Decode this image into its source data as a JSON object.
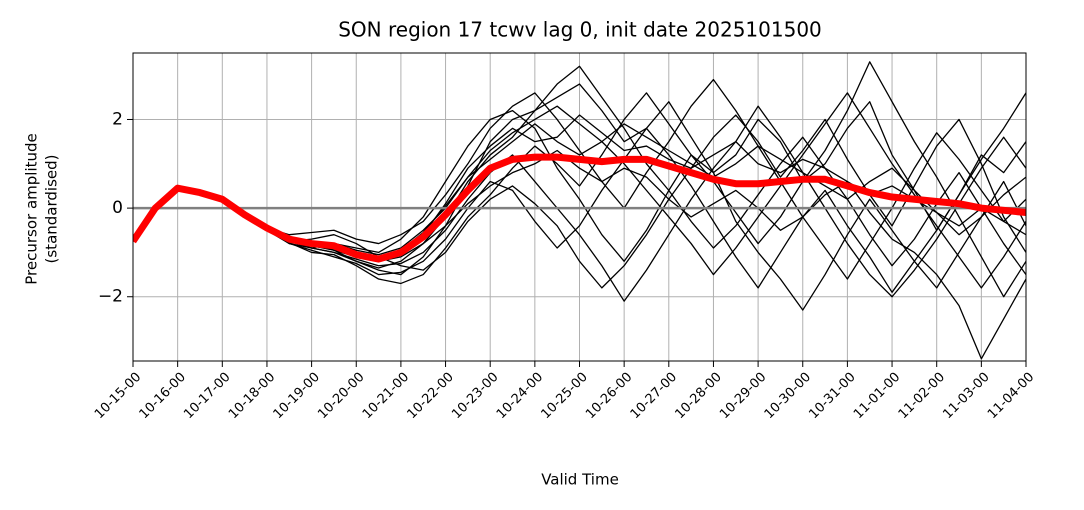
{
  "chart_data": {
    "type": "line",
    "title": "SON region 17 tcwv lag 0, init date 2025101500",
    "xlabel": "Valid Time",
    "ylabel": [
      "Precursor amplitude",
      "(standardised)"
    ],
    "categories": [
      "10-15-00",
      null,
      "10-16-00",
      null,
      "10-17-00",
      null,
      "10-18-00",
      null,
      "10-19-00",
      null,
      "10-20-00",
      null,
      "10-21-00",
      null,
      "10-22-00",
      null,
      "10-23-00",
      null,
      "10-24-00",
      null,
      "10-25-00",
      null,
      "10-26-00",
      null,
      "10-27-00",
      null,
      "10-28-00",
      null,
      "10-29-00",
      null,
      "10-30-00",
      null,
      "10-31-00",
      null,
      "11-01-00",
      null,
      "11-02-00",
      null,
      "11-03-00",
      null,
      "11-04-00"
    ],
    "ylim": [
      -3.45,
      3.5
    ],
    "yticks": [
      {
        "value": -2,
        "label": "−2"
      },
      0,
      2
    ],
    "grid": true,
    "hline": {
      "value": 0,
      "color": "#808080"
    },
    "series": [
      {
        "color": "#000000",
        "width": 1.3,
        "values": [
          null,
          null,
          0.45,
          0.4,
          0.25,
          -0.1,
          -0.4,
          -0.7,
          -0.9,
          -1.0,
          -1.2,
          -1.4,
          -1.5,
          -1.1,
          -0.4,
          0.5,
          1.5,
          2.0,
          2.2,
          2.5,
          2.8,
          2.2,
          1.5,
          1.8,
          2.4,
          1.6,
          0.8,
          1.2,
          2.0,
          1.5,
          0.6,
          1.0,
          1.8,
          2.4,
          1.2,
          0.4,
          -0.5,
          0.3,
          1.2,
          0.8,
          1.5
        ]
      },
      {
        "color": "#000000",
        "width": 1.3,
        "values": [
          null,
          null,
          0.45,
          0.35,
          0.2,
          -0.2,
          -0.5,
          -0.8,
          -0.9,
          -0.8,
          -0.9,
          -1.0,
          -0.7,
          -0.2,
          0.6,
          1.4,
          2.0,
          2.2,
          1.8,
          0.9,
          0.2,
          -0.6,
          -1.2,
          -0.5,
          0.4,
          1.2,
          0.8,
          -0.3,
          -1.0,
          -1.6,
          -2.3,
          -1.5,
          -0.6,
          0.2,
          -0.5,
          -1.2,
          -1.8,
          -1.0,
          -0.2,
          0.6,
          -0.4
        ]
      },
      {
        "color": "#000000",
        "width": 1.3,
        "values": [
          null,
          null,
          0.45,
          0.3,
          0.15,
          -0.2,
          -0.5,
          -0.75,
          -0.7,
          -0.6,
          -0.8,
          -1.1,
          -1.3,
          -1.4,
          -1.0,
          -0.3,
          0.2,
          0.5,
          0.1,
          -0.4,
          -1.2,
          -1.8,
          -1.3,
          -0.6,
          0.2,
          0.9,
          1.6,
          2.1,
          1.5,
          0.7,
          1.3,
          2.0,
          1.1,
          0.3,
          -0.4,
          0.5,
          1.4,
          2.0,
          1.0,
          -0.2,
          -1.0
        ]
      },
      {
        "color": "#000000",
        "width": 1.3,
        "values": [
          null,
          null,
          0.45,
          0.38,
          0.22,
          -0.12,
          -0.42,
          -0.65,
          -0.75,
          -0.95,
          -1.2,
          -1.35,
          -1.2,
          -0.8,
          -0.2,
          0.6,
          1.2,
          1.6,
          2.2,
          2.8,
          3.2,
          2.5,
          1.8,
          1.0,
          0.4,
          -0.3,
          -0.9,
          -0.4,
          0.3,
          1.0,
          1.6,
          0.9,
          0.2,
          -0.6,
          -1.3,
          -0.7,
          0.1,
          0.8,
          0.0,
          -0.8,
          -1.5
        ]
      },
      {
        "color": "#000000",
        "width": 1.3,
        "values": [
          null,
          null,
          0.45,
          0.36,
          0.18,
          -0.18,
          -0.48,
          -0.78,
          -1.0,
          -1.05,
          -1.3,
          -1.6,
          -1.7,
          -1.5,
          -0.9,
          -0.2,
          0.3,
          0.9,
          1.4,
          1.0,
          0.5,
          1.2,
          2.0,
          2.6,
          1.9,
          1.2,
          0.6,
          -0.1,
          -0.8,
          -0.2,
          0.6,
          1.3,
          2.2,
          3.3,
          2.4,
          1.5,
          0.7,
          -0.2,
          -1.1,
          -2.0,
          -1.2
        ]
      },
      {
        "color": "#000000",
        "width": 1.3,
        "values": [
          null,
          null,
          0.45,
          0.34,
          0.2,
          -0.15,
          -0.45,
          -0.6,
          -0.55,
          -0.5,
          -0.7,
          -0.8,
          -0.6,
          -0.3,
          0.3,
          1.0,
          1.8,
          2.3,
          2.6,
          2.0,
          1.3,
          0.6,
          0.0,
          0.8,
          1.5,
          2.3,
          2.9,
          2.2,
          1.4,
          0.6,
          -0.2,
          -0.9,
          -1.6,
          -0.8,
          0.0,
          0.9,
          1.7,
          1.1,
          0.4,
          -0.3,
          0.2
        ]
      },
      {
        "color": "#000000",
        "width": 1.3,
        "values": [
          null,
          null,
          0.45,
          0.37,
          0.24,
          -0.1,
          -0.45,
          -0.8,
          -0.95,
          -1.1,
          -1.25,
          -1.5,
          -1.45,
          -1.2,
          -0.7,
          0.0,
          0.6,
          0.4,
          -0.3,
          -0.9,
          -0.4,
          0.4,
          1.1,
          1.8,
          1.2,
          0.5,
          -0.3,
          -1.1,
          -1.8,
          -1.0,
          -0.2,
          0.4,
          -0.4,
          -1.1,
          -1.9,
          -1.2,
          -0.5,
          0.3,
          1.1,
          1.8,
          2.6
        ]
      },
      {
        "color": "#000000",
        "width": 1.3,
        "values": [
          null,
          null,
          0.45,
          0.33,
          0.19,
          -0.16,
          -0.44,
          -0.72,
          -0.85,
          -0.9,
          -1.0,
          -1.2,
          -1.05,
          -0.6,
          0.1,
          0.9,
          1.4,
          1.8,
          1.5,
          1.6,
          2.1,
          1.7,
          1.3,
          1.4,
          1.1,
          0.9,
          1.2,
          1.5,
          1.0,
          0.8,
          1.1,
          0.9,
          0.6,
          0.3,
          0.5,
          0.2,
          -0.1,
          -0.4,
          0.0,
          -0.3,
          -0.6
        ]
      },
      {
        "color": "#000000",
        "width": 1.3,
        "values": [
          null,
          null,
          0.45,
          0.39,
          0.21,
          -0.14,
          -0.46,
          -0.7,
          -0.85,
          -0.95,
          -1.1,
          -1.2,
          -1.1,
          -0.8,
          -0.4,
          0.1,
          0.5,
          0.8,
          1.0,
          1.3,
          0.9,
          0.6,
          0.9,
          0.7,
          0.2,
          -0.2,
          0.1,
          0.4,
          0.0,
          -0.5,
          -0.2,
          0.3,
          0.6,
          -0.1,
          -0.7,
          -1.0,
          -1.5,
          -2.2,
          -3.4,
          -2.5,
          -1.6
        ]
      },
      {
        "color": "#000000",
        "width": 1.3,
        "values": [
          null,
          null,
          0.45,
          0.36,
          0.2,
          -0.13,
          -0.43,
          -0.68,
          -0.8,
          -0.8,
          -0.95,
          -1.05,
          -0.9,
          -0.5,
          0.0,
          0.7,
          1.3,
          1.7,
          2.0,
          2.3,
          1.9,
          1.5,
          1.0,
          0.4,
          -0.2,
          -0.8,
          -1.5,
          -0.9,
          -0.2,
          0.5,
          1.2,
          1.9,
          2.6,
          1.8,
          1.0,
          0.3,
          -0.4,
          -1.1,
          -1.8,
          -1.1,
          -0.3
        ]
      },
      {
        "color": "#000000",
        "width": 1.3,
        "values": [
          null,
          null,
          0.45,
          0.35,
          0.2,
          -0.15,
          -0.5,
          -0.75,
          -0.9,
          -1.0,
          -1.15,
          -1.3,
          -1.25,
          -1.0,
          -0.5,
          0.2,
          0.8,
          1.2,
          0.6,
          0.0,
          -0.6,
          -1.3,
          -2.1,
          -1.4,
          -0.6,
          0.2,
          0.9,
          1.5,
          2.3,
          1.6,
          0.8,
          0.0,
          -0.8,
          -1.5,
          -2.0,
          -1.4,
          -0.7,
          0.1,
          0.9,
          1.6,
          0.9
        ]
      },
      {
        "color": "#000000",
        "width": 1.3,
        "values": [
          null,
          null,
          0.45,
          0.37,
          0.23,
          -0.11,
          -0.42,
          -0.66,
          -0.78,
          -0.86,
          -1.0,
          -1.1,
          -0.95,
          -0.55,
          0.05,
          0.7,
          1.1,
          1.5,
          1.9,
          1.5,
          1.2,
          1.5,
          1.9,
          1.6,
          1.3,
          1.0,
          0.7,
          1.0,
          1.4,
          1.1,
          0.8,
          0.5,
          0.2,
          0.6,
          0.9,
          0.4,
          -0.1,
          -0.6,
          -0.2,
          0.3,
          0.7
        ]
      },
      {
        "color": "#ff0000",
        "width": 7,
        "values": [
          -0.75,
          0,
          0.45,
          0.35,
          0.2,
          -0.15,
          -0.45,
          -0.7,
          -0.8,
          -0.85,
          -1.05,
          -1.15,
          -1.0,
          -0.65,
          -0.15,
          0.4,
          0.9,
          1.1,
          1.15,
          1.15,
          1.1,
          1.05,
          1.1,
          1.1,
          0.95,
          0.8,
          0.65,
          0.55,
          0.55,
          0.6,
          0.65,
          0.65,
          0.5,
          0.35,
          0.25,
          0.2,
          0.15,
          0.1,
          0.0,
          -0.05,
          -0.1
        ]
      }
    ]
  }
}
